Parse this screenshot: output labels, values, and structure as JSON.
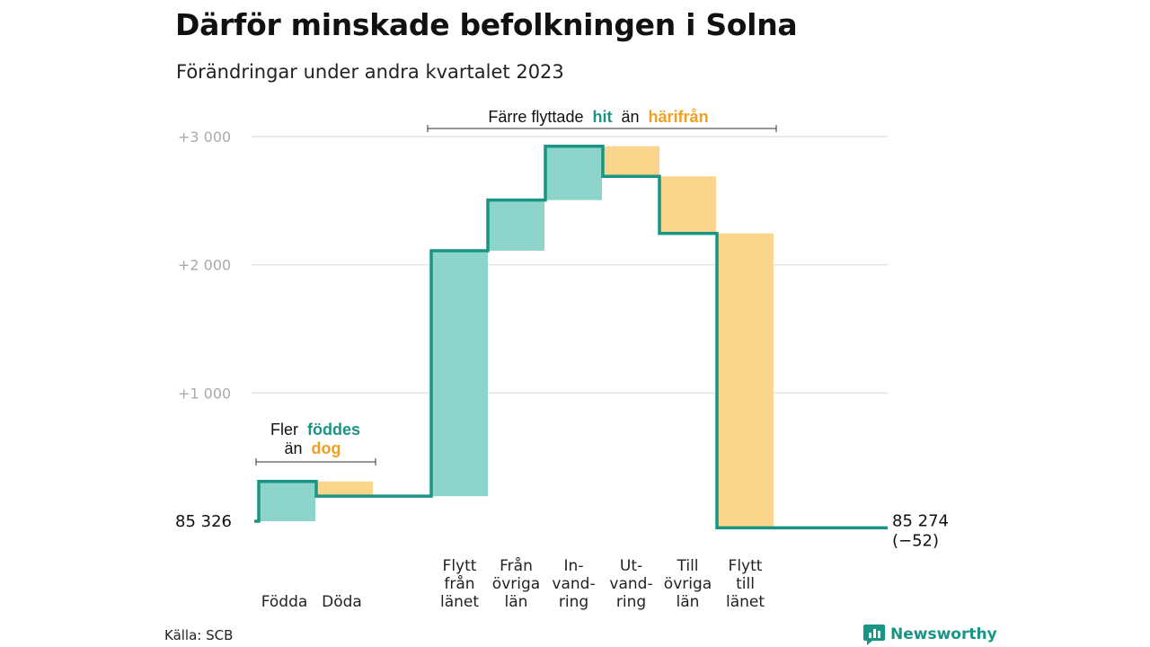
{
  "header": {
    "title": "Därför minskade befolkningen i Solna",
    "subtitle": "Förändringar under andra kvartalet 2023"
  },
  "footer": {
    "source": "Källa: SCB",
    "brand": "Newsworthy",
    "brand_icon": "bar-chart-icon"
  },
  "colors": {
    "increase": "#8dd5cb",
    "decrease": "#fad68c",
    "line": "#1a9485",
    "accent_teal": "#1a9485",
    "accent_orange": "#f0a020"
  },
  "chart_data": {
    "type": "waterfall",
    "start": {
      "value": 85326,
      "label": "85  326"
    },
    "end": {
      "value": 85274,
      "label": "85 274",
      "change_label": "(−52)"
    },
    "baseline": 85326,
    "y_ticks": [
      {
        "value": 1000,
        "label": "+1   000"
      },
      {
        "value": 2000,
        "label": "+2   000"
      },
      {
        "value": 3000,
        "label": "+3   000"
      }
    ],
    "ylim": [
      85326,
      88326
    ],
    "steps": [
      {
        "category": [
          "Födda"
        ],
        "group": "natural",
        "direction": "increase",
        "value": 310
      },
      {
        "category": [
          "Döda"
        ],
        "group": "natural",
        "direction": "decrease",
        "value": -115
      },
      {
        "category": [
          "Flytt",
          "från",
          "länet"
        ],
        "group": "migration",
        "direction": "increase",
        "value": 1915
      },
      {
        "category": [
          "Från",
          "övriga",
          "län"
        ],
        "group": "migration",
        "direction": "increase",
        "value": 395
      },
      {
        "category": [
          "In-",
          "vand-",
          "ring"
        ],
        "group": "migration",
        "direction": "increase",
        "value": 420
      },
      {
        "category": [
          "Ut-",
          "vand-",
          "ring"
        ],
        "group": "migration",
        "direction": "decrease",
        "value": -235
      },
      {
        "category": [
          "Till",
          "övriga",
          "län"
        ],
        "group": "migration",
        "direction": "decrease",
        "value": -445
      },
      {
        "category": [
          "Flytt",
          "till",
          "länet"
        ],
        "group": "migration",
        "direction": "decrease",
        "value": -2297
      }
    ],
    "annotations": [
      {
        "group": "natural",
        "parts": [
          "Fler",
          "föddes",
          "än",
          "dog"
        ]
      },
      {
        "group": "migration",
        "parts": [
          "Färre flyttade",
          "hit",
          "än",
          "härifrån"
        ]
      }
    ],
    "grid": true
  }
}
